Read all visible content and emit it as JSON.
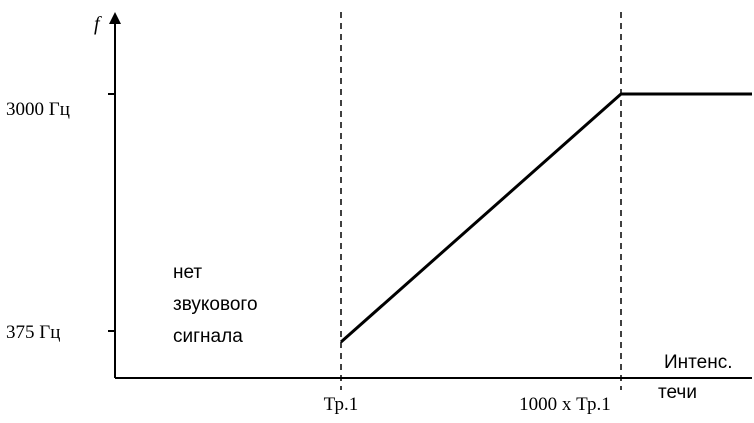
{
  "chart_data": {
    "type": "line",
    "ylabel": "f",
    "xlabel_lines": [
      "Интенс.",
      "течи"
    ],
    "x_ticks": [
      "Тр.1",
      "1000 x Тр.1"
    ],
    "y_ticks": [
      "375 Гц",
      "3000 Гц"
    ],
    "annotation_lines": [
      "нет",
      "звукового",
      "сигнала"
    ],
    "series": [
      {
        "points": [
          {
            "x": "Тр.1",
            "y": 375
          },
          {
            "x": "1000 x Тр.1",
            "y": 3000
          },
          {
            "x": "end",
            "y": 3000
          }
        ]
      }
    ],
    "grid": false,
    "colors": {
      "line": "#000000",
      "axis": "#000000"
    }
  }
}
